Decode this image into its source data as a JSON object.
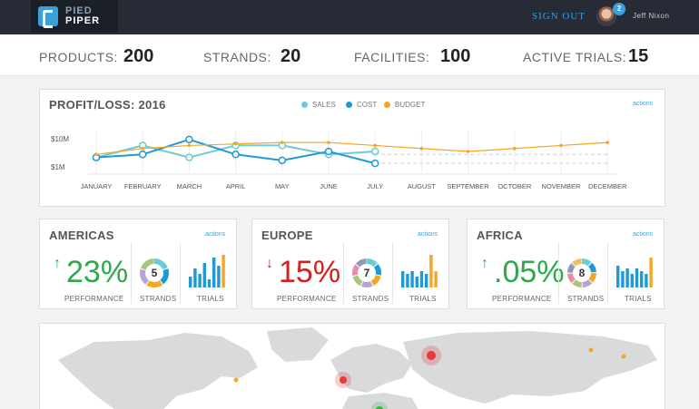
{
  "header": {
    "logo_top": "PIED",
    "logo_bottom": "PIPER",
    "signout": "SIGN OUT",
    "notification_count": "2",
    "username": "Jeff Nixon"
  },
  "stats": [
    {
      "label": "PRODUCTS:",
      "value": "200"
    },
    {
      "label": "STRANDS:",
      "value": "20"
    },
    {
      "label": "FACILITIES:",
      "value": "100"
    },
    {
      "label": "ACTIVE TRIALS:",
      "value": "15"
    }
  ],
  "profit": {
    "title": "PROFIT/LOSS: 2016",
    "actions": "actions",
    "legend": [
      {
        "name": "SALES",
        "color": "#6ccbd6"
      },
      {
        "name": "COST",
        "color": "#1f9ad6"
      },
      {
        "name": "BUDGET",
        "color": "#f5a623"
      }
    ]
  },
  "chart_data": {
    "type": "line",
    "categories": [
      "JANUARY",
      "FEBRUARY",
      "MARCH",
      "APRIL",
      "MAY",
      "JUNE",
      "JULY",
      "AUGUST",
      "SEPTEMBER",
      "OCTOBER",
      "NOVEMBER",
      "DECEMBER"
    ],
    "y_ticks": [
      "$10M",
      "$1M"
    ],
    "ylim": [
      0,
      14
    ],
    "series": [
      {
        "name": "SALES",
        "color": "#6ccbd6",
        "values": [
          5,
          9,
          5,
          9,
          9,
          6,
          7,
          null,
          null,
          null,
          null,
          null
        ]
      },
      {
        "name": "COST",
        "color": "#1f9ad6",
        "values": [
          5,
          6,
          11,
          6,
          4,
          7,
          3,
          null,
          null,
          null,
          null,
          null
        ]
      },
      {
        "name": "BUDGET",
        "color": "#f5a623",
        "values": [
          6,
          8,
          9,
          9.5,
          10,
          10,
          9,
          8,
          7,
          8,
          9,
          10
        ]
      }
    ],
    "forecast_series": [
      {
        "color": "#d0d0d0",
        "values": [
          null,
          null,
          null,
          null,
          null,
          null,
          6,
          6,
          6,
          6,
          6,
          6
        ]
      },
      {
        "color": "#d0d0d0",
        "values": [
          null,
          null,
          null,
          null,
          null,
          null,
          3,
          3,
          3,
          3,
          3,
          3
        ]
      }
    ]
  },
  "regions": [
    {
      "name": "AMERICAS",
      "actions": "actions",
      "arrow": "↑",
      "performance": "23%",
      "color": "#2ea84a",
      "performance_label": "PERFORMANCE",
      "strands": "5",
      "strands_label": "STRANDS",
      "trials_label": "TRIALS",
      "trial_bars": [
        4,
        7,
        5,
        9,
        3,
        11,
        8,
        12
      ]
    },
    {
      "name": "EUROPE",
      "actions": "actions",
      "arrow": "↓",
      "performance": "15%",
      "color": "#d0201f",
      "performance_label": "PERFORMANCE",
      "strands": "7",
      "strands_label": "STRANDS",
      "trials_label": "TRIALS",
      "trial_bars": [
        6,
        5,
        6,
        4,
        6,
        5,
        12,
        6
      ]
    },
    {
      "name": "AFRICA",
      "actions": "actions",
      "arrow": "↑",
      "performance": ".05%",
      "color": "#2ea84a",
      "performance_label": "PERFORMANCE",
      "strands": "8",
      "strands_label": "STRANDS",
      "trials_label": "TRIALS",
      "trial_bars": [
        8,
        6,
        7,
        5,
        7,
        6,
        5,
        11
      ]
    }
  ],
  "map": {
    "markers": [
      {
        "color": "#e43b3b",
        "size": "large"
      },
      {
        "color": "#e43b3b",
        "size": "medium"
      },
      {
        "color": "#f5a623",
        "size": "small"
      },
      {
        "color": "#f5a623",
        "size": "small"
      },
      {
        "color": "#f5a623",
        "size": "small"
      },
      {
        "color": "#3fae49",
        "size": "medium"
      }
    ]
  }
}
